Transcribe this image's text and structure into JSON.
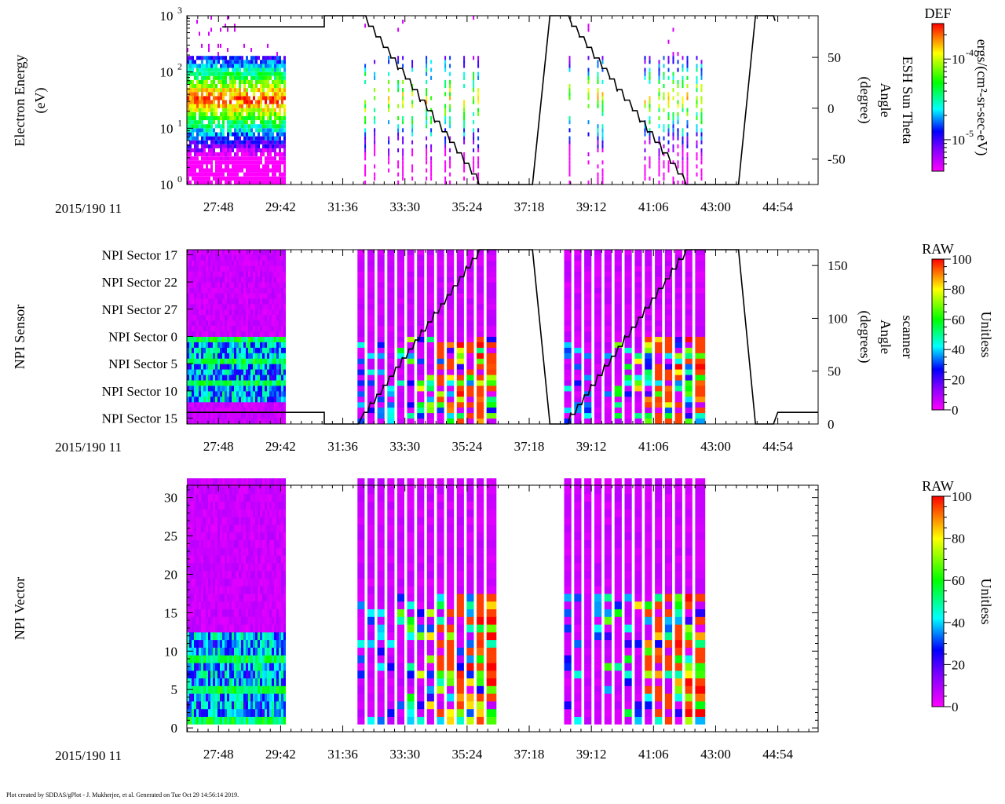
{
  "footer": "Plot created by SDDAS/gPlot - J. Mukherjee, et al.  Generated on Tue Oct 29 14:56:14 2019.",
  "time_axis": {
    "date_label": "2015/190 11",
    "range_seconds_of_hour": [
      1610,
      2768
    ],
    "ticks": [
      {
        "t": 1668,
        "label": "27:48"
      },
      {
        "t": 1782,
        "label": "29:42"
      },
      {
        "t": 1896,
        "label": "31:36"
      },
      {
        "t": 2010,
        "label": "33:30"
      },
      {
        "t": 2124,
        "label": "35:24"
      },
      {
        "t": 2238,
        "label": "37:18"
      },
      {
        "t": 2352,
        "label": "39:12"
      },
      {
        "t": 2466,
        "label": "41:06"
      },
      {
        "t": 2580,
        "label": "43:00"
      },
      {
        "t": 2694,
        "label": "44:54"
      }
    ],
    "minor_step_seconds": 19
  },
  "colors": {
    "line": "#000000",
    "axis": "#000000"
  },
  "chart_data": [
    {
      "type": "heatmap",
      "title": "Electron Energy",
      "ylabel": "Electron Energy",
      "ylabel_unit": "(eV)",
      "yscale": "log",
      "ylim": [
        1,
        1000
      ],
      "yticks": [
        {
          "v": 1,
          "base": "10",
          "exp": "0"
        },
        {
          "v": 10,
          "base": "10",
          "exp": "1"
        },
        {
          "v": 100,
          "base": "10",
          "exp": "2"
        },
        {
          "v": 1000,
          "base": "10",
          "exp": "3"
        }
      ],
      "data_intervals": [
        [
          1610,
          1790
        ],
        [
          1927,
          2172
        ],
        [
          2302,
          2561
        ]
      ],
      "peak_energy_eV": 30,
      "right_axis": {
        "label": "Angle",
        "unit": "(degree)",
        "title": "ESH Sun Theta",
        "ylim": [
          -75,
          91
        ],
        "ticks": [
          {
            "v": 50,
            "label": "50"
          },
          {
            "v": 0,
            "label": "0"
          },
          {
            "v": -50,
            "label": "-50"
          }
        ]
      },
      "angle_curve": {
        "segments": [
          {
            "kind": "line",
            "pts": [
              [
                1675,
                80
              ],
              [
                1862,
                80
              ],
              [
                1862,
                91
              ],
              [
                1930,
                91
              ]
            ]
          },
          {
            "kind": "steps",
            "from": [
              1930,
              91
            ],
            "to": [
              2146,
              -75
            ],
            "steps": 16
          },
          {
            "kind": "line",
            "pts": [
              [
                2146,
                -75
              ],
              [
                2244,
                -75
              ],
              [
                2276,
                91
              ],
              [
                2302,
                91
              ]
            ]
          },
          {
            "kind": "steps",
            "from": [
              2302,
              91
            ],
            "to": [
              2525,
              -75
            ],
            "steps": 16
          },
          {
            "kind": "line",
            "pts": [
              [
                2525,
                -75
              ],
              [
                2622,
                -75
              ],
              [
                2653,
                91
              ],
              [
                2686,
                91
              ],
              [
                2689,
                86
              ]
            ]
          }
        ]
      },
      "colorbar": {
        "title": "DEF",
        "unit": "ergs/(cm²-sr-sec-eV)",
        "scale": "log",
        "range_log10": [
          -5.39,
          -3.56
        ],
        "ticks": [
          {
            "v": -4,
            "base": "10",
            "exp": "-4"
          },
          {
            "v": -5,
            "base": "10",
            "exp": "-5"
          }
        ]
      }
    },
    {
      "type": "heatmap",
      "ylabel": "NPI Sensor",
      "ylim": [
        0,
        32
      ],
      "yticks": [
        {
          "row": 1.5,
          "label": "NPI Sector 17"
        },
        {
          "row": 6.5,
          "label": "NPI Sector 22"
        },
        {
          "row": 11.5,
          "label": "NPI Sector 27"
        },
        {
          "row": 16.5,
          "label": "NPI Sector 0"
        },
        {
          "row": 21.5,
          "label": "NPI Sector 5"
        },
        {
          "row": 26.5,
          "label": "NPI Sector 10"
        },
        {
          "row": 31.5,
          "label": "NPI Sector 15"
        }
      ],
      "data_intervals": [
        [
          1610,
          1790
        ],
        [
          1923,
          2178
        ],
        [
          2302,
          2561
        ]
      ],
      "right_axis": {
        "label": "Angle",
        "unit": "(degrees)",
        "title": "scanner",
        "ylim": [
          0,
          165
        ],
        "ticks": [
          {
            "v": 150,
            "label": "150"
          },
          {
            "v": 100,
            "label": "100"
          },
          {
            "v": 50,
            "label": "50"
          },
          {
            "v": 0,
            "label": "0"
          }
        ]
      },
      "angle_curve": {
        "segments": [
          {
            "kind": "line",
            "pts": [
              [
                1610,
                11
              ],
              [
                1862,
                11
              ],
              [
                1862,
                0
              ],
              [
                1925,
                0
              ],
              [
                1935,
                11
              ]
            ]
          },
          {
            "kind": "steps",
            "from": [
              1935,
              11
            ],
            "to": [
              2146,
              165
            ],
            "steps": 18
          },
          {
            "kind": "line",
            "pts": [
              [
                2146,
                165
              ],
              [
                2244,
                165
              ],
              [
                2276,
                0
              ],
              [
                2302,
                0
              ]
            ]
          },
          {
            "kind": "steps",
            "from": [
              2302,
              0
            ],
            "to": [
              2525,
              165
            ],
            "steps": 18
          },
          {
            "kind": "line",
            "pts": [
              [
                2525,
                165
              ],
              [
                2622,
                165
              ],
              [
                2653,
                0
              ],
              [
                2686,
                0
              ],
              [
                2694,
                11
              ],
              [
                2768,
                11
              ]
            ]
          }
        ]
      },
      "colorbar": {
        "title": "RAW",
        "unit": "Unitless",
        "scale": "linear",
        "range": [
          0,
          100
        ],
        "ticks": [
          {
            "v": 0,
            "label": "0"
          },
          {
            "v": 20,
            "label": "20"
          },
          {
            "v": 40,
            "label": "40"
          },
          {
            "v": 60,
            "label": "60"
          },
          {
            "v": 80,
            "label": "80"
          },
          {
            "v": 100,
            "label": "100"
          }
        ]
      }
    },
    {
      "type": "heatmap",
      "ylabel": "NPI Vector",
      "ylim": [
        -0.5,
        31.6
      ],
      "yticks": [
        {
          "v": 0,
          "label": "0"
        },
        {
          "v": 5,
          "label": "5"
        },
        {
          "v": 10,
          "label": "10"
        },
        {
          "v": 15,
          "label": "15"
        },
        {
          "v": 20,
          "label": "20"
        },
        {
          "v": 25,
          "label": "25"
        },
        {
          "v": 30,
          "label": "30"
        }
      ],
      "data_intervals": [
        [
          1610,
          1790
        ],
        [
          1923,
          2178
        ],
        [
          2302,
          2561
        ]
      ],
      "colorbar": {
        "title": "RAW",
        "unit": "Unitless",
        "scale": "linear",
        "range": [
          0,
          100
        ],
        "ticks": [
          {
            "v": 0,
            "label": "0"
          },
          {
            "v": 20,
            "label": "20"
          },
          {
            "v": 40,
            "label": "40"
          },
          {
            "v": 60,
            "label": "60"
          },
          {
            "v": 80,
            "label": "80"
          },
          {
            "v": 100,
            "label": "100"
          }
        ]
      }
    }
  ]
}
